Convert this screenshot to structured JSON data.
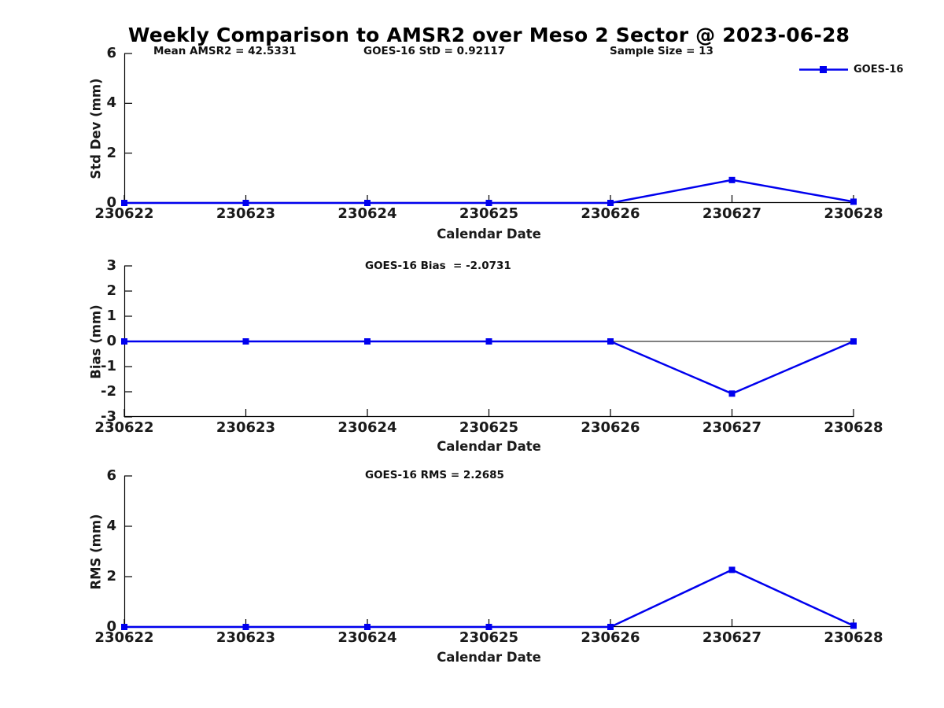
{
  "chart_data": {
    "type": "line",
    "title": "Weekly Comparison to AMSR2 over Meso 2 Sector @ 2023-06-28",
    "x_label": "Calendar Date",
    "categories": [
      "230622",
      "230623",
      "230624",
      "230625",
      "230626",
      "230627",
      "230628"
    ],
    "series_name": "GOES-16",
    "line_color": "#0000EE",
    "axis_color": "#000000",
    "legend_position": "top-right",
    "grid": false,
    "plots": [
      {
        "id": "std_dev",
        "ylabel": "Std Dev (mm)",
        "ylim": [
          0,
          6
        ],
        "yticks": [
          0,
          2,
          4,
          6
        ],
        "annotations": [
          "Mean AMSR2 = 42.5331",
          "GOES-16 StD = 0.92117",
          "Sample Size = 13"
        ],
        "values": [
          0,
          0,
          0,
          0,
          0,
          0.92117,
          0.05
        ]
      },
      {
        "id": "bias",
        "ylabel": "Bias (mm)",
        "ylim": [
          -3,
          3
        ],
        "yticks": [
          3,
          2,
          1,
          0,
          -1,
          -2,
          -3
        ],
        "zero_line": true,
        "annotations": [
          "GOES-16 Bias  = -2.0731"
        ],
        "values": [
          0,
          0,
          0,
          0,
          0,
          -2.0731,
          0
        ]
      },
      {
        "id": "rms",
        "ylabel": "RMS (mm)",
        "ylim": [
          0,
          6
        ],
        "yticks": [
          0,
          2,
          4,
          6
        ],
        "annotations": [
          "GOES-16 RMS = 2.2685"
        ],
        "values": [
          0,
          0,
          0,
          0,
          0,
          2.2685,
          0.05
        ]
      }
    ],
    "stats": {
      "mean_amsr2": 42.5331,
      "goes16_std": 0.92117,
      "sample_size": 13,
      "goes16_bias": -2.0731,
      "goes16_rms": 2.2685
    }
  }
}
